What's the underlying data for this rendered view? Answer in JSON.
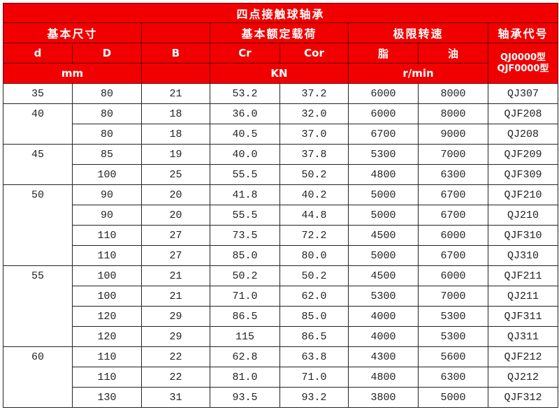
{
  "title": "四点接触球轴承",
  "header": {
    "basic_dims": "基本尺寸",
    "load_rating": "基本额定载荷",
    "speed_limit": "极限转速",
    "code": "轴承代号",
    "d": "d",
    "D": "D",
    "B": "B",
    "Cr": "Cr",
    "Cor": "Cor",
    "grease": "脂",
    "oil": "油",
    "code_types": "QJ0000型 QJF0000型",
    "unit_mm": "mm",
    "unit_kn": "KN",
    "unit_rpm": "r/min"
  },
  "rows": [
    [
      "35",
      "80",
      "21",
      "53.2",
      "37.2",
      "6000",
      "8000",
      "QJ307"
    ],
    [
      "40",
      "80",
      "18",
      "36.0",
      "32.0",
      "6000",
      "8000",
      "QJF208"
    ],
    [
      "",
      "80",
      "18",
      "40.5",
      "37.0",
      "6700",
      "9000",
      "QJ208"
    ],
    [
      "45",
      "85",
      "19",
      "40.0",
      "37.8",
      "5300",
      "7000",
      "QJF209"
    ],
    [
      "",
      "100",
      "25",
      "55.5",
      "50.2",
      "4800",
      "6300",
      "QJF309"
    ],
    [
      "50",
      "90",
      "20",
      "41.8",
      "40.2",
      "5000",
      "6700",
      "QJF210"
    ],
    [
      "",
      "90",
      "20",
      "55.5",
      "44.8",
      "5000",
      "6700",
      "QJ210"
    ],
    [
      "",
      "110",
      "27",
      "73.5",
      "72.2",
      "4500",
      "6000",
      "QJF310"
    ],
    [
      "",
      "110",
      "27",
      "85.0",
      "80.0",
      "5000",
      "6700",
      "QJ310"
    ],
    [
      "55",
      "100",
      "21",
      "50.2",
      "50.2",
      "4500",
      "6000",
      "QJF211"
    ],
    [
      "",
      "100",
      "21",
      "71.0",
      "62.0",
      "5300",
      "7000",
      "QJ211"
    ],
    [
      "",
      "120",
      "29",
      "86.5",
      "85.0",
      "4000",
      "5300",
      "QJF311"
    ],
    [
      "",
      "120",
      "29",
      "115",
      "86.5",
      "4000",
      "5300",
      "QJ311"
    ],
    [
      "60",
      "110",
      "22",
      "62.8",
      "63.8",
      "4300",
      "5600",
      "QJF212"
    ],
    [
      "",
      "110",
      "22",
      "81.0",
      "71.0",
      "4800",
      "6300",
      "QJ212"
    ],
    [
      "",
      "130",
      "31",
      "93.5",
      "93.2",
      "3800",
      "5000",
      "QJF312"
    ]
  ]
}
